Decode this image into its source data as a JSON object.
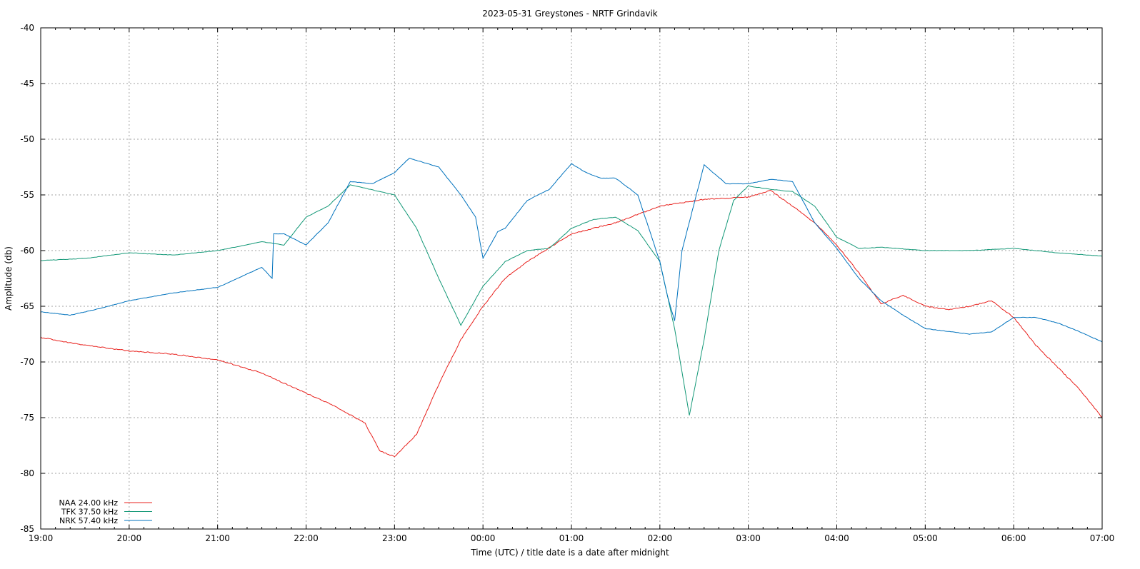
{
  "chart_data": {
    "type": "line",
    "title": "2023-05-31 Greystones - NRTF Grindavik",
    "xlabel": "Time (UTC) / title date is a date after midnight",
    "ylabel": "Amplitude (db)",
    "xlim": [
      "19:00",
      "07:00"
    ],
    "ylim": [
      -85,
      -40
    ],
    "x_ticks": [
      "19:00",
      "20:00",
      "21:00",
      "22:00",
      "23:00",
      "00:00",
      "01:00",
      "02:00",
      "03:00",
      "04:00",
      "05:00",
      "06:00",
      "07:00"
    ],
    "y_ticks": [
      -40,
      -45,
      -50,
      -55,
      -60,
      -65,
      -70,
      -75,
      -80,
      -85
    ],
    "grid": true,
    "legend_position": "bottom-left",
    "series": [
      {
        "name": "NAA 24.00 kHz",
        "color": "#e8201c",
        "x": [
          "19:00",
          "19:30",
          "20:00",
          "20:30",
          "21:00",
          "21:30",
          "22:00",
          "22:20",
          "22:40",
          "22:50",
          "23:00",
          "23:15",
          "23:30",
          "23:45",
          "00:00",
          "00:15",
          "00:30",
          "01:00",
          "01:30",
          "02:00",
          "02:30",
          "03:00",
          "03:15",
          "03:30",
          "03:45",
          "04:00",
          "04:15",
          "04:30",
          "04:45",
          "05:00",
          "05:15",
          "05:30",
          "05:45",
          "06:00",
          "06:15",
          "06:30",
          "06:45",
          "07:00"
        ],
        "y": [
          -67.8,
          -68.5,
          -69,
          -69.3,
          -69.8,
          -71,
          -72.8,
          -74,
          -75.5,
          -78,
          -78.5,
          -76.5,
          -72,
          -68,
          -65,
          -62.5,
          -61,
          -58.5,
          -57.5,
          -56,
          -55.4,
          -55.2,
          -54.6,
          -56,
          -57.5,
          -59.5,
          -62,
          -64.8,
          -64,
          -65,
          -65.3,
          -65,
          -64.5,
          -66,
          -68.5,
          -70.5,
          -72.5,
          -75
        ]
      },
      {
        "name": "TFK 37.50 kHz",
        "color": "#139877",
        "x": [
          "19:00",
          "19:30",
          "20:00",
          "20:30",
          "21:00",
          "21:30",
          "21:45",
          "22:00",
          "22:15",
          "22:30",
          "23:00",
          "23:15",
          "23:30",
          "23:45",
          "00:00",
          "00:15",
          "00:30",
          "00:45",
          "01:00",
          "01:15",
          "01:30",
          "01:45",
          "02:00",
          "02:10",
          "02:20",
          "02:30",
          "02:40",
          "02:50",
          "03:00",
          "03:15",
          "03:30",
          "03:45",
          "04:00",
          "04:15",
          "04:30",
          "05:00",
          "05:30",
          "06:00",
          "06:30",
          "07:00"
        ],
        "y": [
          -60.9,
          -60.7,
          -60.2,
          -60.4,
          -60,
          -59.2,
          -59.5,
          -57,
          -56,
          -54.1,
          -55,
          -58,
          -62.5,
          -66.7,
          -63.2,
          -61,
          -60,
          -59.8,
          -58,
          -57.2,
          -57,
          -58.2,
          -61,
          -67,
          -74.8,
          -68,
          -60,
          -55.5,
          -54.2,
          -54.5,
          -54.7,
          -56,
          -58.8,
          -59.8,
          -59.7,
          -60,
          -60,
          -59.8,
          -60.2,
          -60.5
        ]
      },
      {
        "name": "NRK 57.40 kHz",
        "color": "#0072bd",
        "x": [
          "19:00",
          "19:20",
          "19:40",
          "20:00",
          "20:30",
          "21:00",
          "21:30",
          "21:37",
          "21:38",
          "21:45",
          "22:00",
          "22:15",
          "22:30",
          "22:45",
          "23:00",
          "23:10",
          "23:30",
          "23:45",
          "23:55",
          "00:00",
          "00:10",
          "00:15",
          "00:30",
          "00:45",
          "01:00",
          "01:10",
          "01:20",
          "01:30",
          "01:45",
          "02:00",
          "02:05",
          "02:10",
          "02:15",
          "02:30",
          "02:45",
          "03:00",
          "03:15",
          "03:30",
          "03:45",
          "04:00",
          "04:15",
          "04:30",
          "04:45",
          "05:00",
          "05:30",
          "05:45",
          "06:00",
          "06:15",
          "06:30",
          "06:45",
          "07:00"
        ],
        "y": [
          -65.5,
          -65.8,
          -65.2,
          -64.5,
          -63.8,
          -63.3,
          -61.5,
          -62.5,
          -58.5,
          -58.5,
          -59.5,
          -57.5,
          -53.8,
          -54,
          -53,
          -51.7,
          -52.5,
          -55,
          -57,
          -60.7,
          -58.3,
          -58,
          -55.5,
          -54.5,
          -52.2,
          -53,
          -53.5,
          -53.5,
          -55,
          -61,
          -64,
          -66.3,
          -60,
          -52.3,
          -54,
          -54,
          -53.6,
          -53.8,
          -57.5,
          -59.8,
          -62.5,
          -64.5,
          -65.8,
          -67,
          -67.5,
          -67.3,
          -66,
          -66,
          -66.5,
          -67.3,
          -68.2
        ]
      }
    ]
  }
}
